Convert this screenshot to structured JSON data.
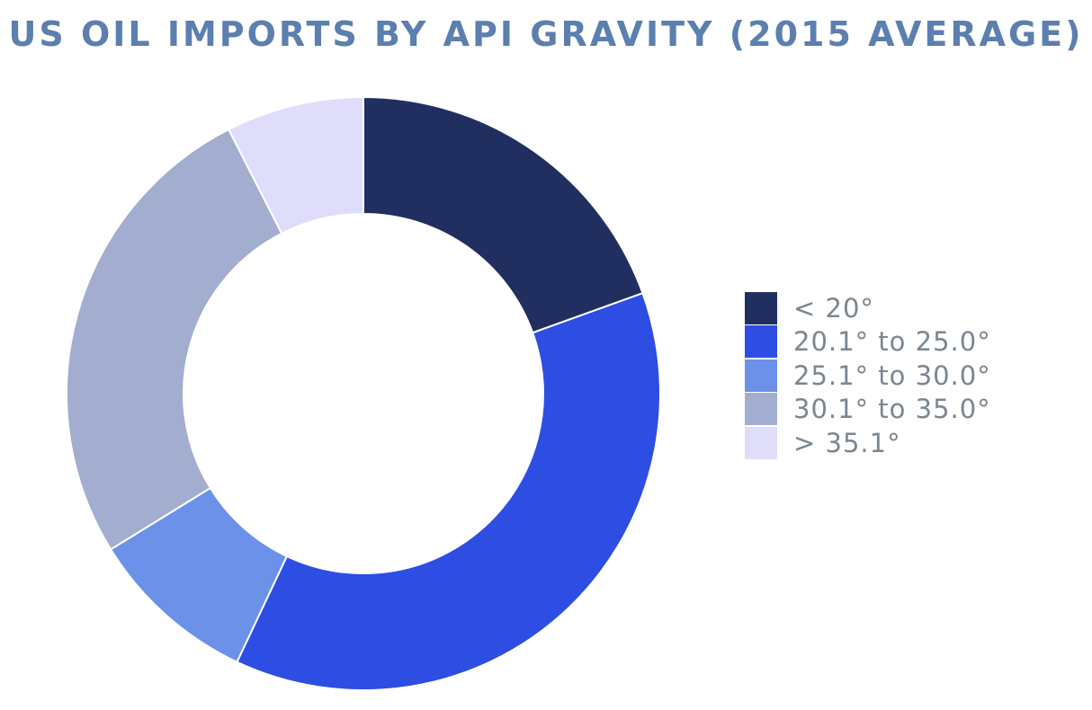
{
  "chart_data": {
    "type": "pie",
    "donut": true,
    "title": "US OIL IMPORTS BY API GRAVITY (2015 AVERAGE)",
    "categories": [
      "< 20°",
      "20.1° to 25.0°",
      "25.1° to 30.0°",
      "30.1° to 35.0°",
      "> 35.1°"
    ],
    "values": [
      19.5,
      37.5,
      9.2,
      26.3,
      7.5
    ],
    "colors": [
      "#212f60",
      "#2d4de3",
      "#6b91e8",
      "#a2adcf",
      "#e0ddfb"
    ],
    "legend_position": "right",
    "start_angle": "top",
    "direction": "clockwise"
  },
  "styles": {
    "title_color": "#5b7fae",
    "legend_text_color": "#7a8691",
    "slice_border_color": "#ffffff"
  }
}
